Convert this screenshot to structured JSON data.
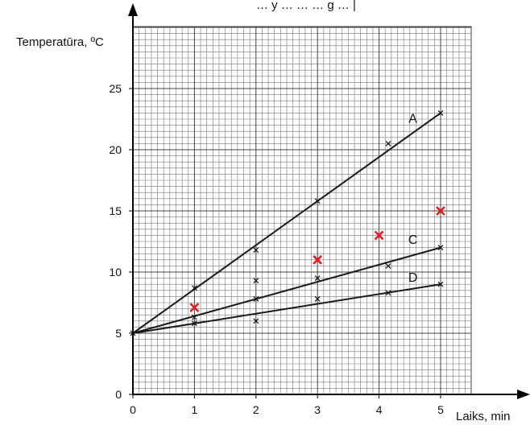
{
  "chart_data": {
    "type": "scatter",
    "top_text": "… y … … … g … |",
    "xlabel": "Laiks, min",
    "ylabel": "Temperatūra, ºC",
    "xlim": [
      0,
      5.7
    ],
    "ylim": [
      0,
      30
    ],
    "x_ticks": [
      0,
      1,
      2,
      3,
      4,
      5
    ],
    "y_ticks": [
      0,
      5,
      10,
      15,
      20,
      25
    ],
    "grid": "on",
    "lines": [
      {
        "name": "A",
        "from": [
          0,
          5
        ],
        "to": [
          5,
          23
        ],
        "label_at": [
          4.55,
          22.2
        ]
      },
      {
        "name": "C",
        "from": [
          0,
          5
        ],
        "to": [
          5,
          12
        ],
        "label_at": [
          4.55,
          12.3
        ]
      },
      {
        "name": "D",
        "from": [
          0,
          5
        ],
        "to": [
          5,
          9
        ],
        "label_at": [
          4.55,
          9.2
        ]
      }
    ],
    "series": [
      {
        "marker_color": "#111111",
        "points": [
          [
            1,
            8.7
          ],
          [
            2,
            11.8
          ],
          [
            3,
            15.8
          ],
          [
            4.15,
            20.5
          ],
          [
            5,
            23
          ],
          [
            2,
            9.3
          ],
          [
            3,
            9.5
          ],
          [
            4.15,
            10.5
          ],
          [
            1,
            6.3
          ],
          [
            2,
            7.8
          ],
          [
            3,
            7.8
          ],
          [
            4.15,
            8.3
          ],
          [
            5,
            12
          ],
          [
            5,
            9
          ],
          [
            1,
            5.8
          ],
          [
            2,
            6
          ],
          [
            0,
            5
          ]
        ]
      },
      {
        "marker_color": "#e02020",
        "points": [
          [
            1,
            7.1
          ],
          [
            3,
            11
          ],
          [
            4,
            13
          ],
          [
            5,
            15
          ]
        ]
      }
    ]
  }
}
